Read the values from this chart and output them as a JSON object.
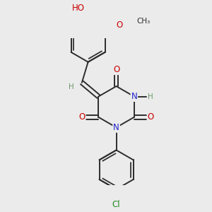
{
  "bg_color": "#ebebeb",
  "bond_color": "#2d2d2d",
  "bond_width": 1.4,
  "atom_colors": {
    "O": "#cc0000",
    "N": "#2222cc",
    "Cl": "#228822",
    "C": "#2d2d2d",
    "H": "#6a9a6a"
  }
}
